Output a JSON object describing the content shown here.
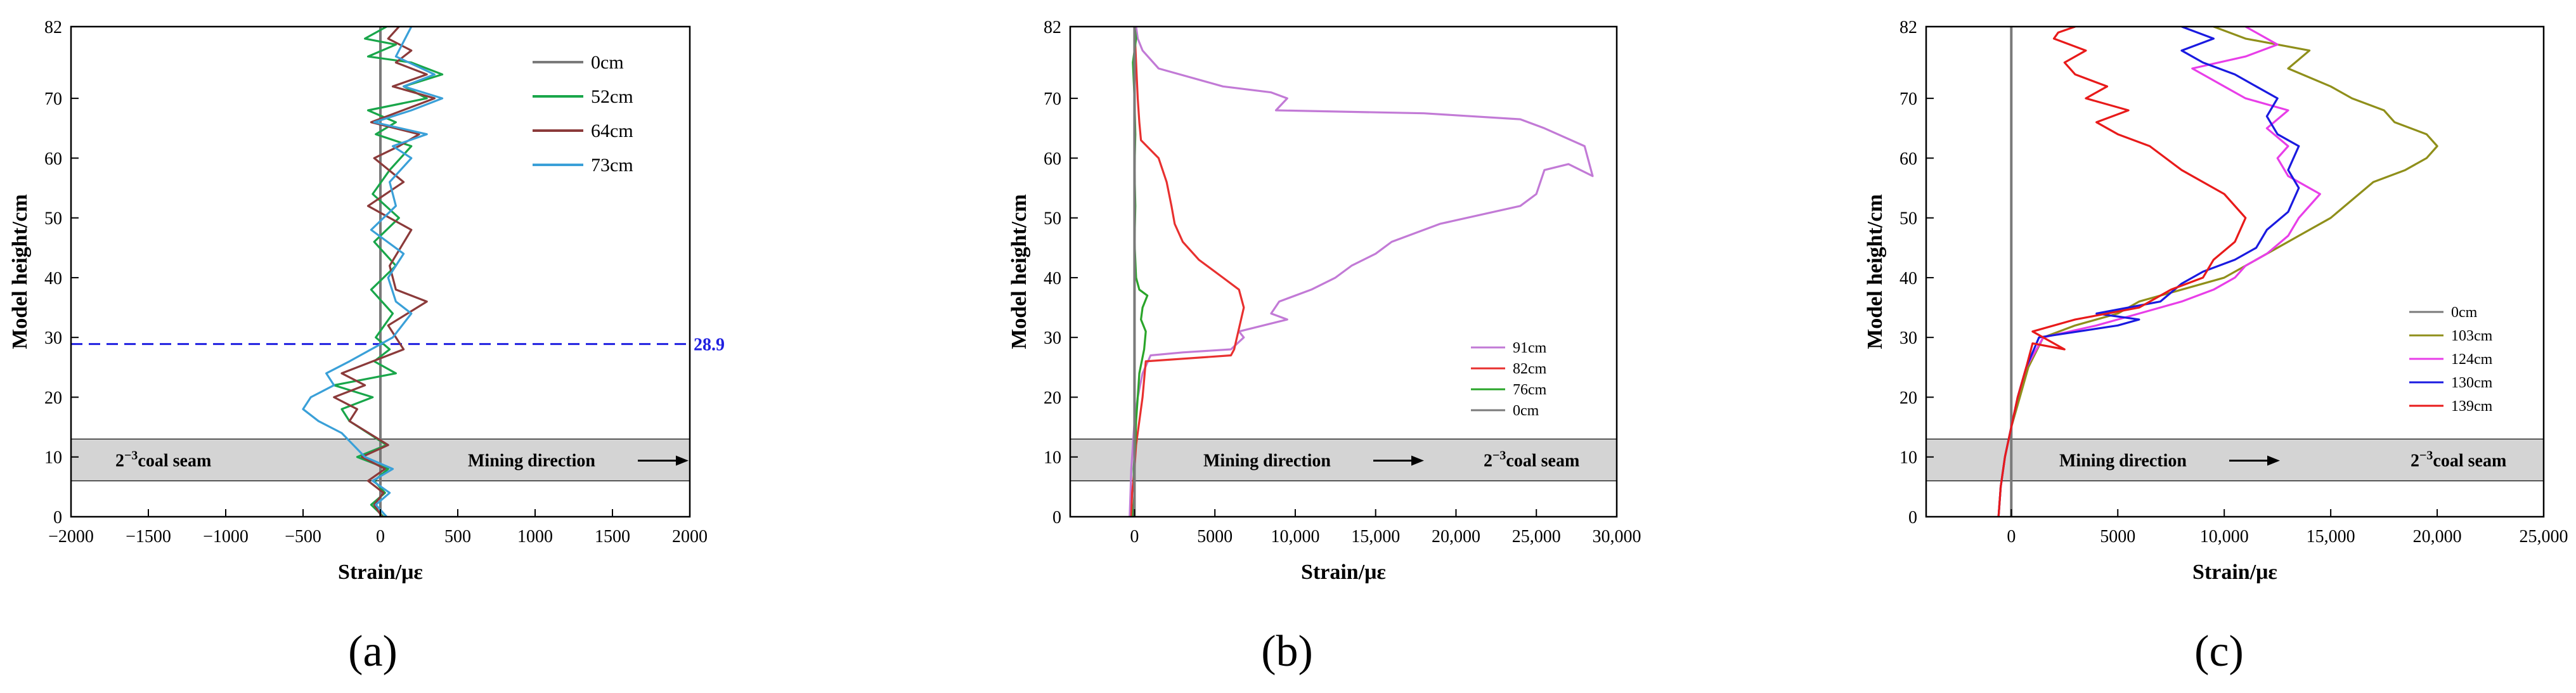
{
  "chart_data": [
    {
      "type": "line",
      "panel_label": "(a)",
      "xlabel": "Strain/με",
      "ylabel": "Model height/cm",
      "xlim": [
        -2000,
        2000
      ],
      "ylim": [
        0,
        82
      ],
      "xticks": [
        -2000,
        -1500,
        -1000,
        -500,
        0,
        500,
        1000,
        1500,
        2000
      ],
      "xtick_labels": [
        "−2000",
        "−1500",
        "−1000",
        "−500",
        "0",
        "500",
        "1000",
        "1500",
        "2000"
      ],
      "yticks": [
        0,
        10,
        20,
        30,
        40,
        50,
        60,
        70,
        82
      ],
      "ytick_labels": [
        "0",
        "10",
        "20",
        "30",
        "40",
        "50",
        "60",
        "70",
        "82"
      ],
      "coal_seam_band": [
        6,
        13
      ],
      "coal_seam_label_main": "2",
      "coal_seam_label_sup": "−3",
      "coal_seam_label_rest": "coal seam",
      "mining_label": "Mining direction",
      "hline": {
        "y": 28.9,
        "label": "28.9",
        "color": "#1f1fe0"
      },
      "legend": "top-right",
      "series": [
        {
          "name": "0cm",
          "color": "#7a7a7a",
          "x": [
            0,
            0
          ],
          "y": [
            0,
            82
          ]
        },
        {
          "name": "52cm",
          "color": "#19a64a",
          "x": [
            20,
            -60,
            30,
            -40,
            50,
            -150,
            40,
            -80,
            -200,
            -250,
            -50,
            -300,
            100,
            -40,
            60,
            -30,
            80,
            -60,
            100,
            -40,
            120,
            -50,
            60,
            200,
            -30,
            100,
            -80,
            300,
            150,
            400,
            200,
            -80,
            100,
            -100,
            40
          ],
          "y": [
            0,
            2,
            4,
            6,
            8,
            10,
            12,
            14,
            16,
            18,
            20,
            22,
            24,
            26,
            28,
            30,
            34,
            38,
            42,
            46,
            50,
            54,
            58,
            62,
            64,
            66,
            68,
            70,
            72,
            74,
            76,
            77,
            79,
            80,
            82
          ]
        },
        {
          "name": "64cm",
          "color": "#8b3a3a",
          "x": [
            10,
            -40,
            20,
            -80,
            30,
            -120,
            50,
            -200,
            -150,
            -300,
            -100,
            -250,
            150,
            50,
            300,
            100,
            60,
            200,
            -80,
            150,
            -40,
            120,
            250,
            -60,
            350,
            80,
            300,
            100,
            200,
            50,
            120
          ],
          "y": [
            0,
            2,
            4,
            6,
            8,
            10,
            12,
            16,
            18,
            20,
            22,
            24,
            28,
            32,
            36,
            38,
            42,
            48,
            52,
            56,
            60,
            62,
            64,
            66,
            70,
            72,
            74,
            76,
            78,
            80,
            82
          ]
        },
        {
          "name": "73cm",
          "color": "#3aa0d8",
          "x": [
            40,
            -30,
            60,
            -50,
            80,
            -100,
            -250,
            -400,
            -500,
            -450,
            -300,
            -350,
            -200,
            80,
            200,
            100,
            50,
            150,
            -60,
            100,
            60,
            200,
            80,
            300,
            -40,
            200,
            400,
            150,
            350,
            100,
            200
          ],
          "y": [
            0,
            2,
            4,
            6,
            8,
            10,
            14,
            16,
            18,
            20,
            22,
            24,
            26,
            30,
            34,
            36,
            40,
            44,
            48,
            52,
            56,
            60,
            62,
            64,
            66,
            68,
            70,
            72,
            74,
            77,
            82
          ]
        }
      ]
    },
    {
      "type": "line",
      "panel_label": "(b)",
      "xlabel": "Strain/με",
      "ylabel": "Model height/cm",
      "xlim": [
        -4000,
        30000
      ],
      "ylim": [
        0,
        82
      ],
      "xticks": [
        0,
        5000,
        10000,
        15000,
        20000,
        25000,
        30000
      ],
      "xtick_labels": [
        "0",
        "5000",
        "10,000",
        "15,000",
        "20,000",
        "25,000",
        "30,000"
      ],
      "yticks": [
        0,
        10,
        20,
        30,
        40,
        50,
        60,
        70,
        82
      ],
      "ytick_labels": [
        "0",
        "10",
        "20",
        "30",
        "40",
        "50",
        "60",
        "70",
        "82"
      ],
      "coal_seam_band": [
        6,
        13
      ],
      "coal_seam_label_main": "2",
      "coal_seam_label_sup": "−3",
      "coal_seam_label_rest": "coal seam",
      "mining_label": "Mining direction",
      "legend": "right",
      "series": [
        {
          "name": "91cm",
          "color": "#c27ad6",
          "x": [
            -300,
            -250,
            -200,
            -100,
            0,
            200,
            500,
            1000,
            3000,
            6000,
            6800,
            6500,
            9500,
            8500,
            9000,
            11000,
            12500,
            13500,
            15000,
            16000,
            19000,
            24000,
            25000,
            25500,
            27000,
            28500,
            28000,
            25500,
            24000,
            18000,
            8800,
            9500,
            8500,
            5500,
            1500,
            500,
            200,
            100
          ],
          "y": [
            0,
            4,
            8,
            12,
            16,
            20,
            24,
            27,
            27.5,
            28,
            30,
            31,
            33,
            34,
            36,
            38,
            40,
            42,
            44,
            46,
            49,
            52,
            54,
            58,
            59,
            57,
            62,
            65,
            66.5,
            67.5,
            68,
            70,
            71,
            72,
            75,
            78,
            80,
            82
          ]
        },
        {
          "name": "82cm",
          "color": "#e8302f",
          "x": [
            -200,
            -150,
            0,
            100,
            300,
            500,
            700,
            6000,
            6200,
            6800,
            6500,
            5500,
            4000,
            3000,
            2500,
            2300,
            2000,
            1500,
            400,
            300,
            200,
            100,
            0
          ],
          "y": [
            0,
            4,
            8,
            12,
            16,
            20,
            26,
            27,
            28,
            35,
            38,
            40,
            43,
            46,
            49,
            52,
            56,
            60,
            63,
            66,
            70,
            76,
            82
          ]
        },
        {
          "name": "76cm",
          "color": "#2aa52a",
          "x": [
            -100,
            0,
            -50,
            50,
            100,
            200,
            300,
            600,
            700,
            400,
            500,
            800,
            300,
            100,
            0,
            50,
            0,
            50,
            0,
            -100,
            100,
            0
          ],
          "y": [
            0,
            4,
            8,
            12,
            16,
            20,
            24,
            28,
            31,
            33,
            35,
            37,
            38,
            40,
            46,
            52,
            58,
            64,
            70,
            76,
            80,
            82
          ]
        },
        {
          "name": "0cm",
          "color": "#7a7a7a",
          "x": [
            0,
            0
          ],
          "y": [
            0,
            82
          ]
        }
      ]
    },
    {
      "type": "line",
      "panel_label": "(c)",
      "xlabel": "Strain/με",
      "ylabel": "Model height/cm",
      "xlim": [
        -4000,
        25000
      ],
      "ylim": [
        0,
        82
      ],
      "xticks": [
        0,
        5000,
        10000,
        15000,
        20000,
        25000
      ],
      "xtick_labels": [
        "0",
        "5000",
        "10,000",
        "15,000",
        "20,000",
        "25,000"
      ],
      "yticks": [
        0,
        10,
        20,
        30,
        40,
        50,
        60,
        70,
        82
      ],
      "ytick_labels": [
        "0",
        "10",
        "20",
        "30",
        "40",
        "50",
        "60",
        "70",
        "82"
      ],
      "coal_seam_band": [
        6,
        13
      ],
      "coal_seam_label_main": "2",
      "coal_seam_label_sup": "−3",
      "coal_seam_label_rest": "coal seam",
      "mining_label": "Mining direction",
      "legend": "right",
      "series": [
        {
          "name": "0cm",
          "color": "#7a7a7a",
          "x": [
            0,
            0
          ],
          "y": [
            0,
            82
          ]
        },
        {
          "name": "103cm",
          "color": "#8f8f1a",
          "x": [
            -600,
            -500,
            -300,
            0,
            400,
            800,
            1500,
            3000,
            5000,
            6000,
            8000,
            10000,
            11000,
            12000,
            13500,
            15000,
            16000,
            17000,
            18500,
            19500,
            20000,
            19500,
            18000,
            17500,
            16000,
            15000,
            13000,
            14000,
            11000,
            9500
          ],
          "y": [
            0,
            5,
            10,
            15,
            20,
            25,
            30,
            32,
            34,
            36,
            38,
            40,
            42,
            44,
            47,
            50,
            53,
            56,
            58,
            60,
            62,
            64,
            66,
            68,
            70,
            72,
            75,
            78,
            80,
            82
          ]
        },
        {
          "name": "124cm",
          "color": "#e83ee8",
          "x": [
            -600,
            -500,
            -300,
            0,
            300,
            700,
            1500,
            4000,
            6000,
            8000,
            9500,
            10500,
            11000,
            12000,
            13000,
            13500,
            14500,
            13000,
            12500,
            13000,
            12000,
            13000,
            11000,
            10000,
            8500,
            11000,
            12500,
            11000
          ],
          "y": [
            0,
            5,
            10,
            15,
            20,
            25,
            30,
            32,
            34,
            36,
            38,
            40,
            42,
            44,
            47,
            50,
            54,
            57,
            60,
            62,
            65,
            68,
            70,
            72,
            75,
            77,
            79,
            82
          ]
        },
        {
          "name": "130cm",
          "color": "#1a1ae0",
          "x": [
            -600,
            -500,
            -300,
            0,
            300,
            700,
            1300,
            5000,
            6000,
            4000,
            7000,
            8000,
            9000,
            10500,
            11500,
            12000,
            13000,
            13500,
            13000,
            13500,
            12500,
            12000,
            12500,
            11500,
            10500,
            9000,
            8000,
            9500,
            8000
          ],
          "y": [
            0,
            5,
            10,
            15,
            20,
            25,
            30,
            32,
            33,
            34,
            36,
            39,
            41,
            43,
            45,
            48,
            51,
            55,
            58,
            62,
            64,
            67,
            70,
            72,
            74,
            76,
            78,
            80,
            82
          ]
        },
        {
          "name": "139cm",
          "color": "#e81a1a",
          "x": [
            -600,
            -500,
            -300,
            0,
            300,
            700,
            1000,
            2500,
            1000,
            3000,
            6000,
            7500,
            9000,
            9500,
            10500,
            11000,
            10000,
            8000,
            6500,
            5000,
            4000,
            5500,
            3500,
            4500,
            3000,
            2500,
            3500,
            2000,
            2200,
            3000
          ],
          "y": [
            0,
            5,
            10,
            15,
            20,
            25,
            29,
            28,
            31,
            33,
            35,
            38,
            40,
            43,
            46,
            50,
            54,
            58,
            62,
            64,
            66,
            68,
            70,
            72,
            74,
            76,
            78,
            80,
            81,
            82
          ]
        }
      ]
    }
  ]
}
